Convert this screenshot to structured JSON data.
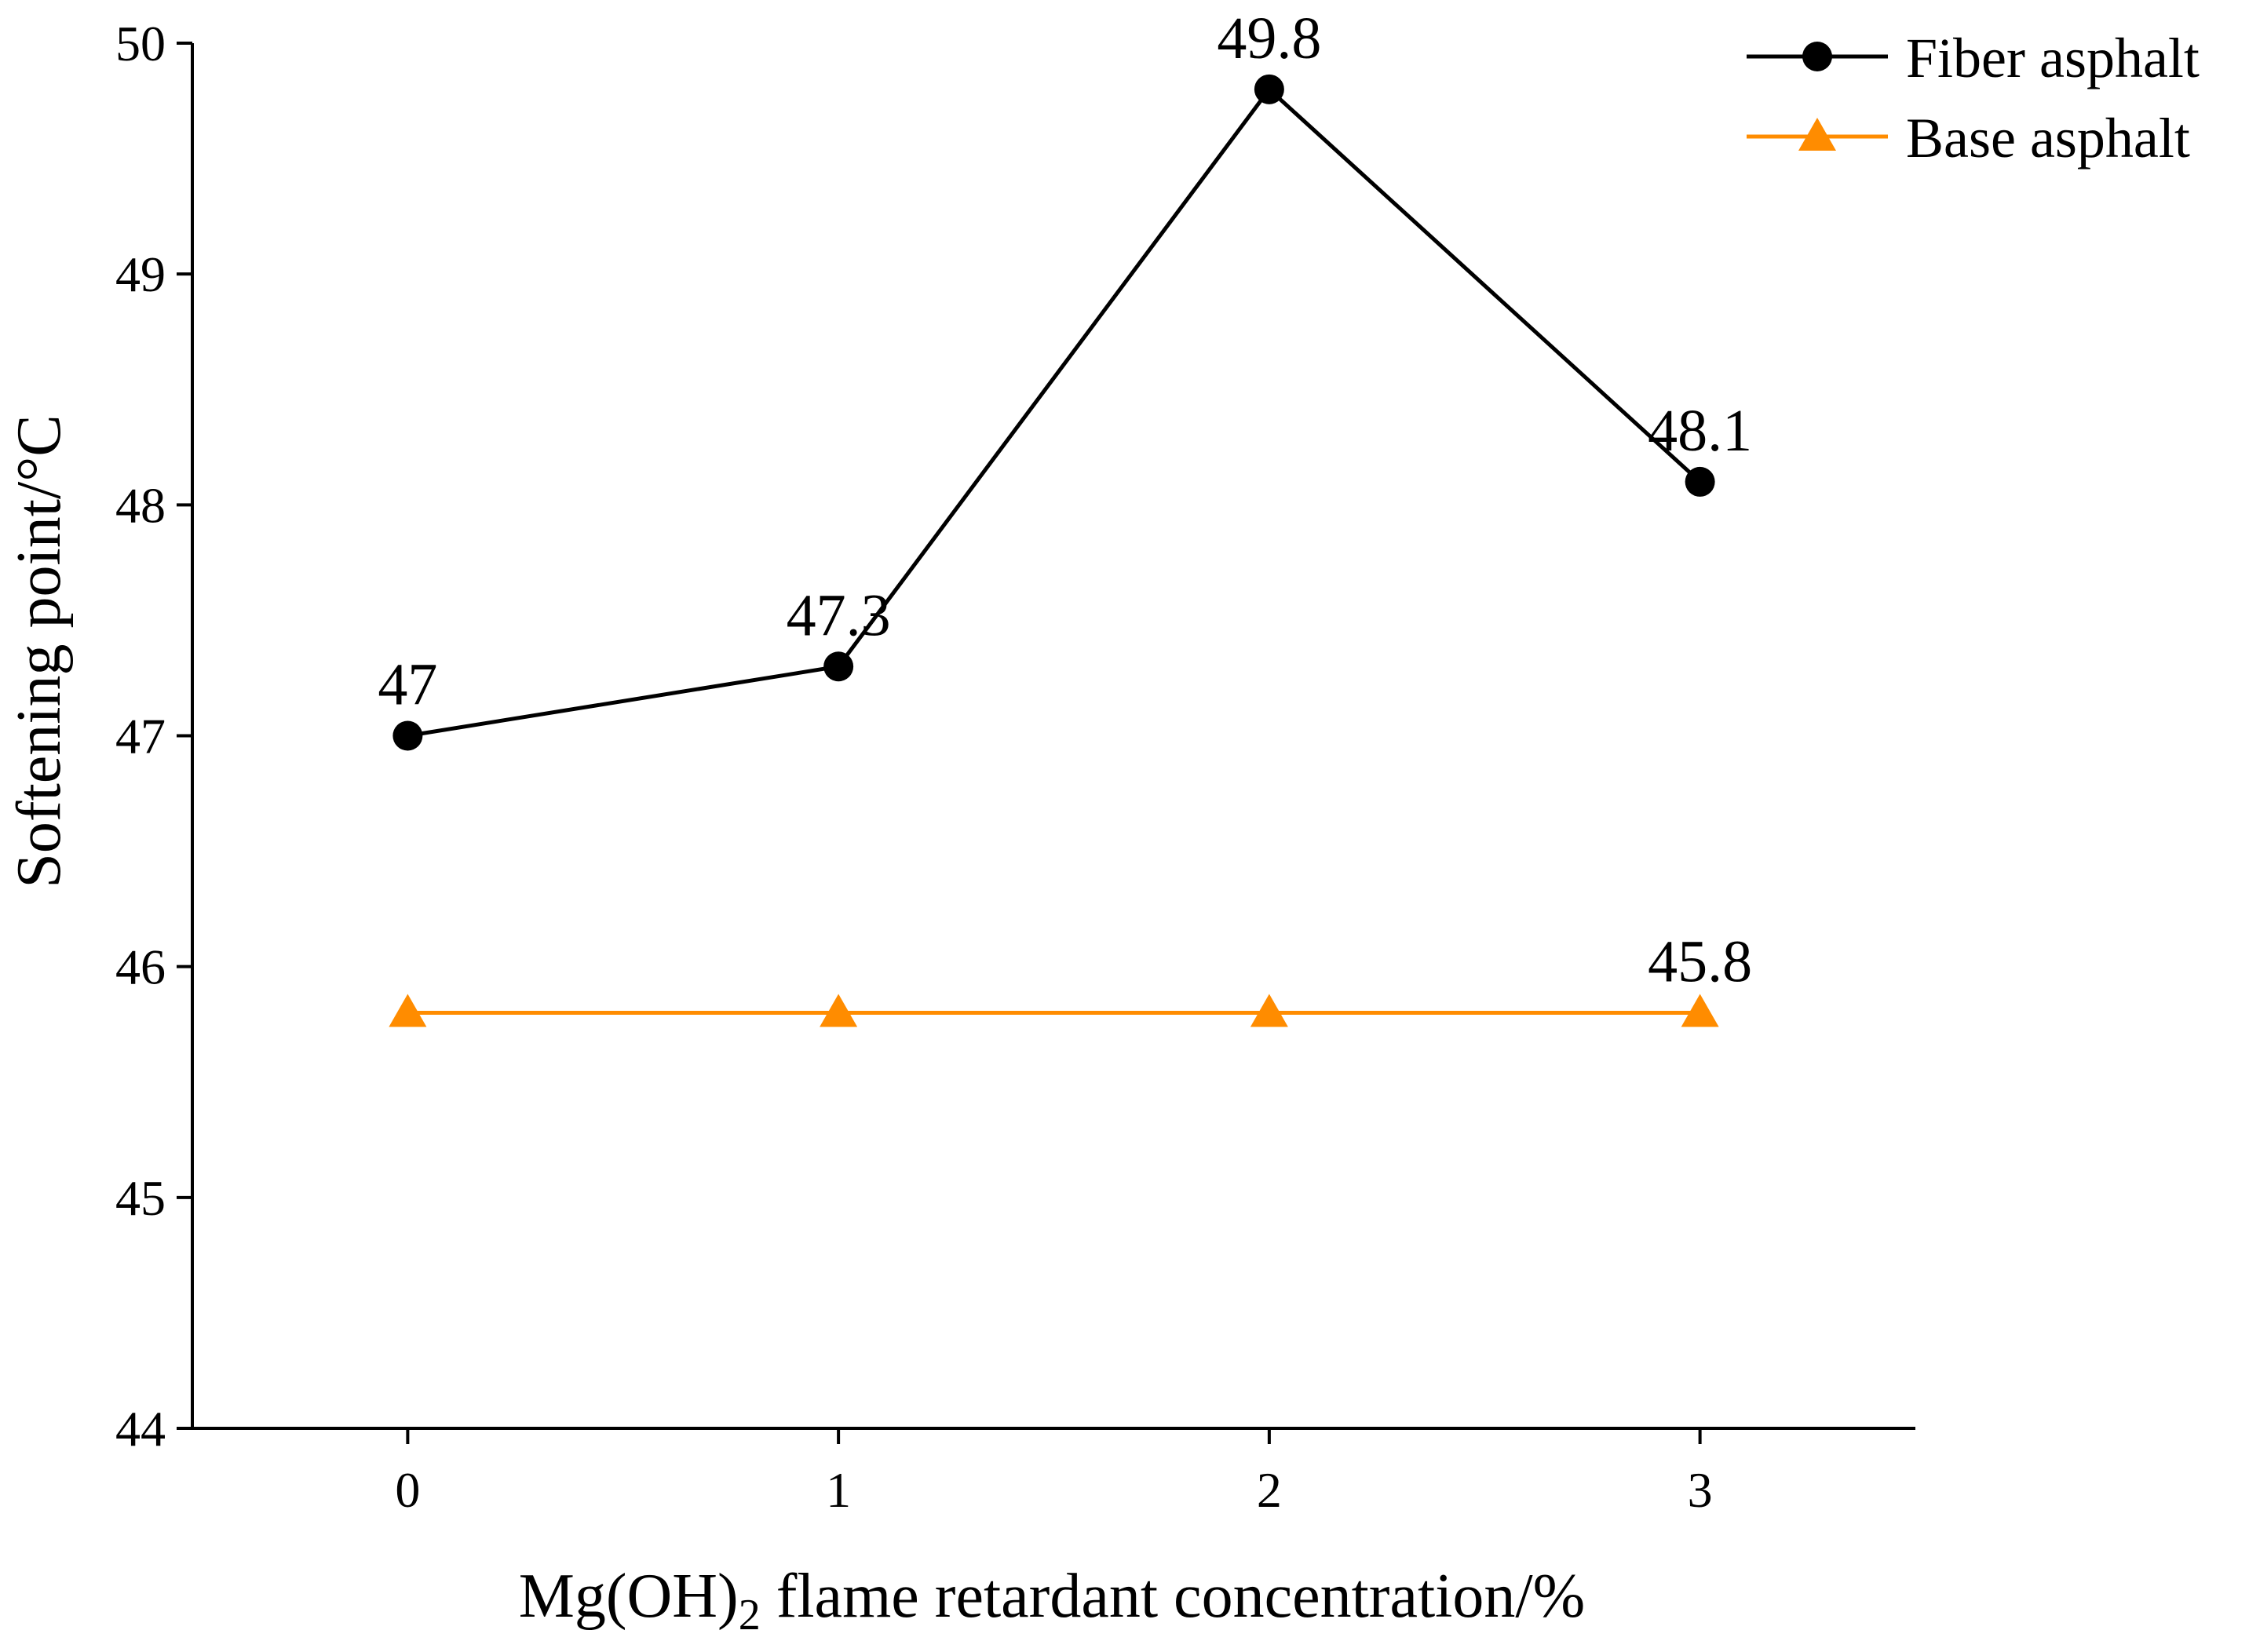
{
  "chart_data": {
    "type": "line",
    "title": "",
    "xlabel_main": "Mg(OH)",
    "xlabel_sub": "2",
    "xlabel_rest": " flame retardant concentration/%",
    "ylabel": "Softening point/°C",
    "x": [
      0,
      1,
      2,
      3
    ],
    "x_tick_labels": [
      "0",
      "1",
      "2",
      "3"
    ],
    "xlim": [
      -0.5,
      3.5
    ],
    "ylim": [
      44,
      50
    ],
    "y_ticks": [
      44,
      45,
      46,
      47,
      48,
      49,
      50
    ],
    "y_tick_labels": [
      "44",
      "45",
      "46",
      "47",
      "48",
      "49",
      "50"
    ],
    "grid": false,
    "legend_position": "top-right",
    "series": [
      {
        "name": "Fiber asphalt",
        "values": [
          47,
          47.3,
          49.8,
          48.1
        ],
        "color": "#000000",
        "marker": "circle",
        "data_labels": [
          "47",
          "47.3",
          "49.8",
          "48.1"
        ]
      },
      {
        "name": "Base asphalt",
        "values": [
          45.8,
          45.8,
          45.8,
          45.8
        ],
        "color": "#FF8C00",
        "marker": "triangle",
        "data_labels": [
          "",
          "",
          "",
          "45.8"
        ]
      }
    ]
  }
}
